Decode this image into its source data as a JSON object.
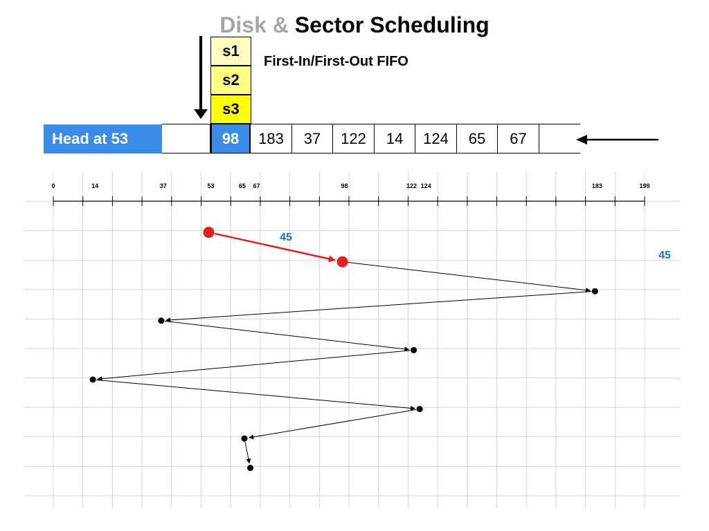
{
  "title": {
    "part1": "Disk &",
    "part2": "Sector Scheduling"
  },
  "incoming_stack": [
    {
      "label": "s1",
      "color": "#ffffc0"
    },
    {
      "label": "s2",
      "color": "#ffff80"
    },
    {
      "label": "s3",
      "color": "#ffff00"
    }
  ],
  "policy_label": "First-In/First-Out FIFO",
  "head_label": "Head at 53",
  "queue": [
    "",
    "98",
    "183",
    "37",
    "122",
    "14",
    "124",
    "65",
    "67",
    ""
  ],
  "colors": {
    "accent_blue": "#3a8ce8",
    "first_move": "#e61e1e",
    "distance_text": "#1f6fd6"
  },
  "chart_data": {
    "type": "line",
    "axis": {
      "min": 0,
      "max": 199,
      "tick_labels": [
        0,
        14,
        37,
        53,
        65,
        67,
        98,
        122,
        124,
        183,
        199
      ]
    },
    "head_start": 53,
    "sequence": [
      53,
      98,
      183,
      37,
      122,
      14,
      124,
      65,
      67
    ],
    "first_move_label": "45",
    "side_label": "45"
  }
}
